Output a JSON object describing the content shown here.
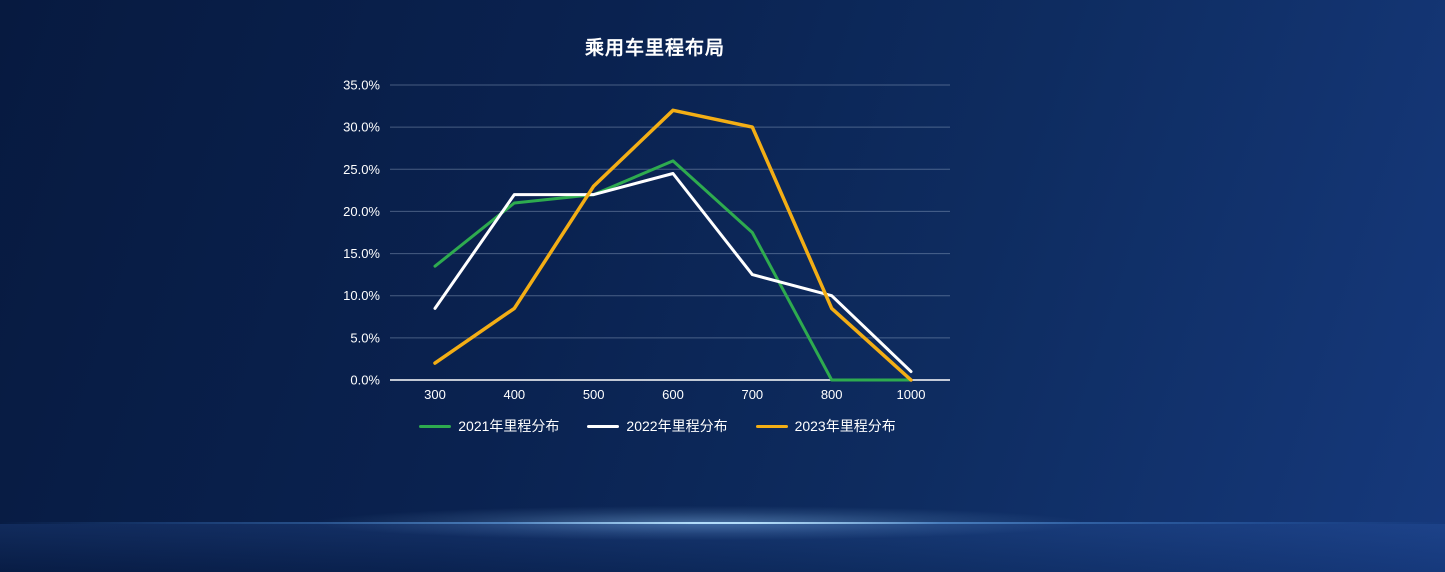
{
  "page": {
    "background_top_left": "#071a40",
    "background_bottom_right": "#16397c",
    "divider_glow_color": "#96cdff"
  },
  "chart_data": {
    "type": "line",
    "title": "乘用车里程布局",
    "categories": [
      "300",
      "400",
      "500",
      "600",
      "700",
      "800",
      "1000"
    ],
    "series": [
      {
        "name": "2021年里程分布",
        "color": "#2eab4f",
        "values": [
          13.5,
          21,
          22,
          26,
          17.5,
          0,
          0
        ]
      },
      {
        "name": "2022年里程分布",
        "color": "#ffffff",
        "values": [
          8.5,
          22,
          22,
          24.5,
          12.5,
          10,
          1
        ]
      },
      {
        "name": "2023年里程分布",
        "color": "#f3ae15",
        "values": [
          2,
          8.5,
          23,
          32,
          30,
          8.5,
          0
        ]
      }
    ],
    "xlabel": "",
    "ylabel": "",
    "ylim": [
      0,
      35
    ],
    "y_tick_labels": [
      "35.0%",
      "30.0%",
      "25.0%",
      "20.0%",
      "15.0%",
      "10.0%",
      "5.0%",
      "0.0%"
    ],
    "grid": true,
    "grid_color": "rgba(190,205,230,0.35)",
    "axis_line_color": "#ffffff",
    "tick_label_color": "#ffffff",
    "legend_position": "bottom"
  }
}
